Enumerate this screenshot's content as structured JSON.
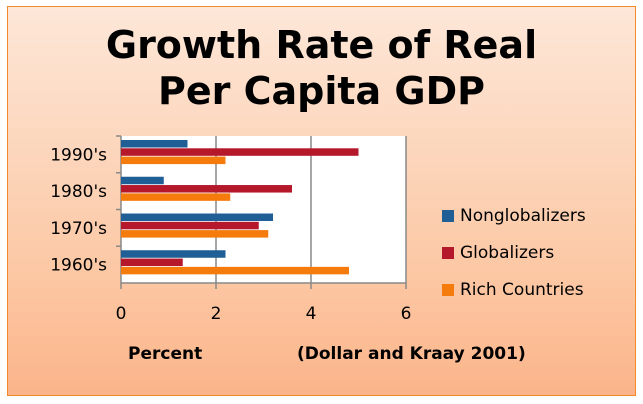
{
  "chart_data": {
    "type": "bar",
    "orientation": "horizontal",
    "title": "Growth Rate of Real Per Capita GDP",
    "title_lines": [
      "Growth Rate of Real",
      "Per Capita GDP"
    ],
    "categories": [
      "1960's",
      "1970's",
      "1980's",
      "1990's"
    ],
    "series": [
      {
        "name": "Nonglobalizers",
        "color": "#1f5f96",
        "values": [
          2.2,
          3.2,
          0.9,
          1.4
        ]
      },
      {
        "name": "Globalizers",
        "color": "#b5172b",
        "values": [
          1.3,
          2.9,
          3.6,
          5.0
        ]
      },
      {
        "name": "Rich Countries",
        "color": "#f57c0c",
        "values": [
          4.8,
          3.1,
          2.3,
          2.2
        ]
      }
    ],
    "xlabel": "Percent",
    "source": "(Dollar and Kraay 2001)",
    "xlim": [
      0,
      6
    ],
    "xticks": [
      "0",
      "2",
      "4",
      "6"
    ],
    "grid": true,
    "legend": "right"
  }
}
